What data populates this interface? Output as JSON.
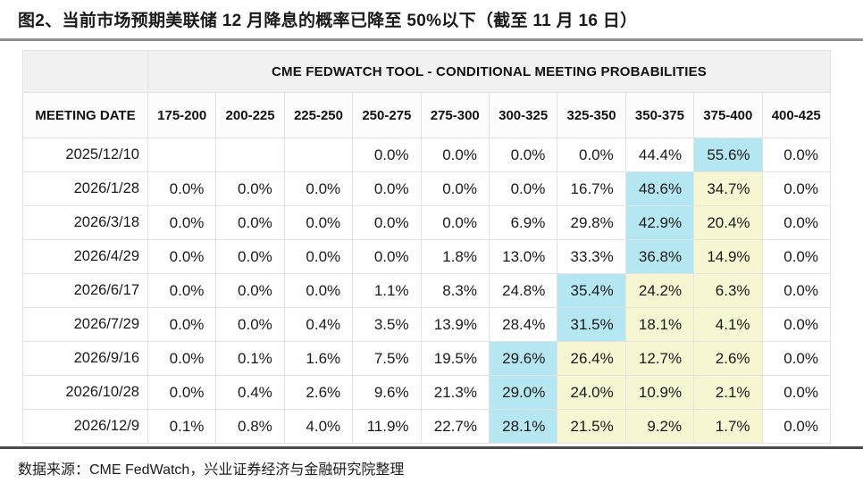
{
  "page": {
    "title": "图2、当前市场预期美联储 12 月降息的概率已降至 50%以下（截至 11 月 16 日）",
    "source_note": "数据来源：CME FedWatch，兴业证券经济与金融研究院整理"
  },
  "colors": {
    "highlight_cyan": "#b4e7f2",
    "highlight_yellow": "#f6f6d3",
    "header_band_bg": "#f1f1f1",
    "column_header_bg": "#fcfcfc",
    "cell_border": "#e2e2e2",
    "title_rule": "#8f8f8f",
    "footer_rule": "#4a4a4a"
  },
  "chart_data": {
    "type": "table",
    "title": "CME FEDWATCH TOOL - CONDITIONAL MEETING PROBABILITIES",
    "figure_caption": "图2、当前市场预期美联储 12 月降息的概率已降至 50%以下（截至 11 月 16 日）",
    "date_header": "MEETING DATE",
    "rate_columns": [
      "175-200",
      "200-225",
      "225-250",
      "250-275",
      "275-300",
      "300-325",
      "325-350",
      "350-375",
      "375-400",
      "400-425"
    ],
    "rows": [
      {
        "date": "2025/12/10",
        "values": [
          "",
          "",
          "",
          "0.0%",
          "0.0%",
          "0.0%",
          "0.0%",
          "44.4%",
          "55.6%",
          "0.0%"
        ],
        "bg": [
          "",
          "",
          "",
          "",
          "",
          "",
          "",
          "",
          "cyan",
          ""
        ]
      },
      {
        "date": "2026/1/28",
        "values": [
          "0.0%",
          "0.0%",
          "0.0%",
          "0.0%",
          "0.0%",
          "0.0%",
          "16.7%",
          "48.6%",
          "34.7%",
          "0.0%"
        ],
        "bg": [
          "",
          "",
          "",
          "",
          "",
          "",
          "",
          "cyan",
          "yellow",
          ""
        ]
      },
      {
        "date": "2026/3/18",
        "values": [
          "0.0%",
          "0.0%",
          "0.0%",
          "0.0%",
          "0.0%",
          "6.9%",
          "29.8%",
          "42.9%",
          "20.4%",
          "0.0%"
        ],
        "bg": [
          "",
          "",
          "",
          "",
          "",
          "",
          "",
          "cyan",
          "yellow",
          ""
        ]
      },
      {
        "date": "2026/4/29",
        "values": [
          "0.0%",
          "0.0%",
          "0.0%",
          "0.0%",
          "1.8%",
          "13.0%",
          "33.3%",
          "36.8%",
          "14.9%",
          "0.0%"
        ],
        "bg": [
          "",
          "",
          "",
          "",
          "",
          "",
          "",
          "cyan",
          "yellow",
          ""
        ]
      },
      {
        "date": "2026/6/17",
        "values": [
          "0.0%",
          "0.0%",
          "0.0%",
          "1.1%",
          "8.3%",
          "24.8%",
          "35.4%",
          "24.2%",
          "6.3%",
          "0.0%"
        ],
        "bg": [
          "",
          "",
          "",
          "",
          "",
          "",
          "cyan",
          "yellow",
          "yellow",
          ""
        ]
      },
      {
        "date": "2026/7/29",
        "values": [
          "0.0%",
          "0.0%",
          "0.4%",
          "3.5%",
          "13.9%",
          "28.4%",
          "31.5%",
          "18.1%",
          "4.1%",
          "0.0%"
        ],
        "bg": [
          "",
          "",
          "",
          "",
          "",
          "",
          "cyan",
          "yellow",
          "yellow",
          ""
        ]
      },
      {
        "date": "2026/9/16",
        "values": [
          "0.0%",
          "0.1%",
          "1.6%",
          "7.5%",
          "19.5%",
          "29.6%",
          "26.4%",
          "12.7%",
          "2.6%",
          "0.0%"
        ],
        "bg": [
          "",
          "",
          "",
          "",
          "",
          "cyan",
          "yellow",
          "yellow",
          "yellow",
          ""
        ]
      },
      {
        "date": "2026/10/28",
        "values": [
          "0.0%",
          "0.4%",
          "2.6%",
          "9.6%",
          "21.3%",
          "29.0%",
          "24.0%",
          "10.9%",
          "2.1%",
          "0.0%"
        ],
        "bg": [
          "",
          "",
          "",
          "",
          "",
          "cyan",
          "yellow",
          "yellow",
          "yellow",
          ""
        ]
      },
      {
        "date": "2026/12/9",
        "values": [
          "0.1%",
          "0.8%",
          "4.0%",
          "11.9%",
          "22.7%",
          "28.1%",
          "21.5%",
          "9.2%",
          "1.7%",
          "0.0%"
        ],
        "bg": [
          "",
          "",
          "",
          "",
          "",
          "cyan",
          "yellow",
          "yellow",
          "yellow",
          ""
        ]
      }
    ]
  }
}
